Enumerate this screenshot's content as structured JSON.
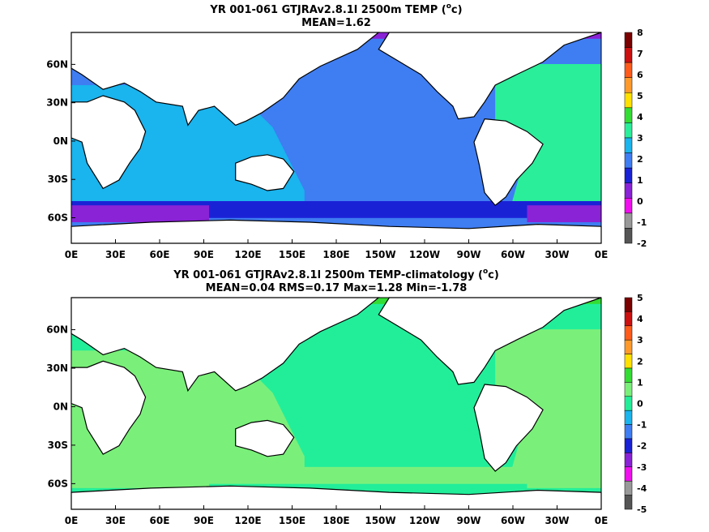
{
  "chart_data": [
    {
      "type": "heatmap",
      "title_line1": "YR 001-061 GTJRAv2.8.1l 2500m TEMP (",
      "title_sup": "o",
      "title_unit_tail": "c)",
      "title_line2": "MEAN=1.62",
      "x_ticks": [
        "0E",
        "30E",
        "60E",
        "90E",
        "120E",
        "150E",
        "180E",
        "150W",
        "120W",
        "90W",
        "60W",
        "30W",
        "0E"
      ],
      "y_ticks": [
        "60N",
        "30N",
        "0N",
        "30S",
        "60S"
      ],
      "colorbar": {
        "labels": [
          "8",
          "7",
          "6",
          "5",
          "4",
          "3",
          "2",
          "1",
          "0",
          "-1",
          "-2"
        ],
        "colors": [
          "#7a0000",
          "#cc1010",
          "#ff5a1a",
          "#ff9a2a",
          "#ffe000",
          "#33dd33",
          "#2aee9a",
          "#1ab4ee",
          "#3f7df2",
          "#1a22d6",
          "#8a22d6",
          "#f010ee",
          "#999999",
          "#555555"
        ]
      },
      "regions": {
        "pacific": "#3f7df2",
        "indian": "#1ab4ee",
        "atlantic": "#2aee9a",
        "southern_band": "#1a22d6",
        "antarctic_margin": "#8a22d6",
        "arctic": "#8a22d6"
      }
    },
    {
      "type": "heatmap",
      "title_line1": "YR 001-061 GTJRAv2.8.1l 2500m TEMP-climatology (",
      "title_sup": "o",
      "title_unit_tail": "c)",
      "title_line2": "MEAN=0.04   RMS=0.17   Max=1.28   Min=-1.78",
      "x_ticks": [
        "0E",
        "30E",
        "60E",
        "90E",
        "120E",
        "150E",
        "180E",
        "150W",
        "120W",
        "90W",
        "60W",
        "30W",
        "0E"
      ],
      "y_ticks": [
        "60N",
        "30N",
        "0N",
        "30S",
        "60S"
      ],
      "colorbar": {
        "labels": [
          "5",
          "4",
          "3",
          "2",
          "1",
          "0",
          "-1",
          "-2",
          "-3",
          "-4",
          "-5"
        ],
        "colors": [
          "#7a0000",
          "#cc1010",
          "#ff5a1a",
          "#ff9a2a",
          "#ffe000",
          "#33dd33",
          "#7af07a",
          "#22ee9a",
          "#1ab4ee",
          "#3f7df2",
          "#1a22d6",
          "#8a22d6",
          "#f010ee",
          "#999999",
          "#555555"
        ]
      },
      "regions": {
        "pacific": "#22ee9a",
        "indian": "#7af07a",
        "atlantic": "#7af07a",
        "southern_band": "#7af07a",
        "antarctic_margin": "#7af07a",
        "arctic": "#33dd33"
      }
    }
  ]
}
